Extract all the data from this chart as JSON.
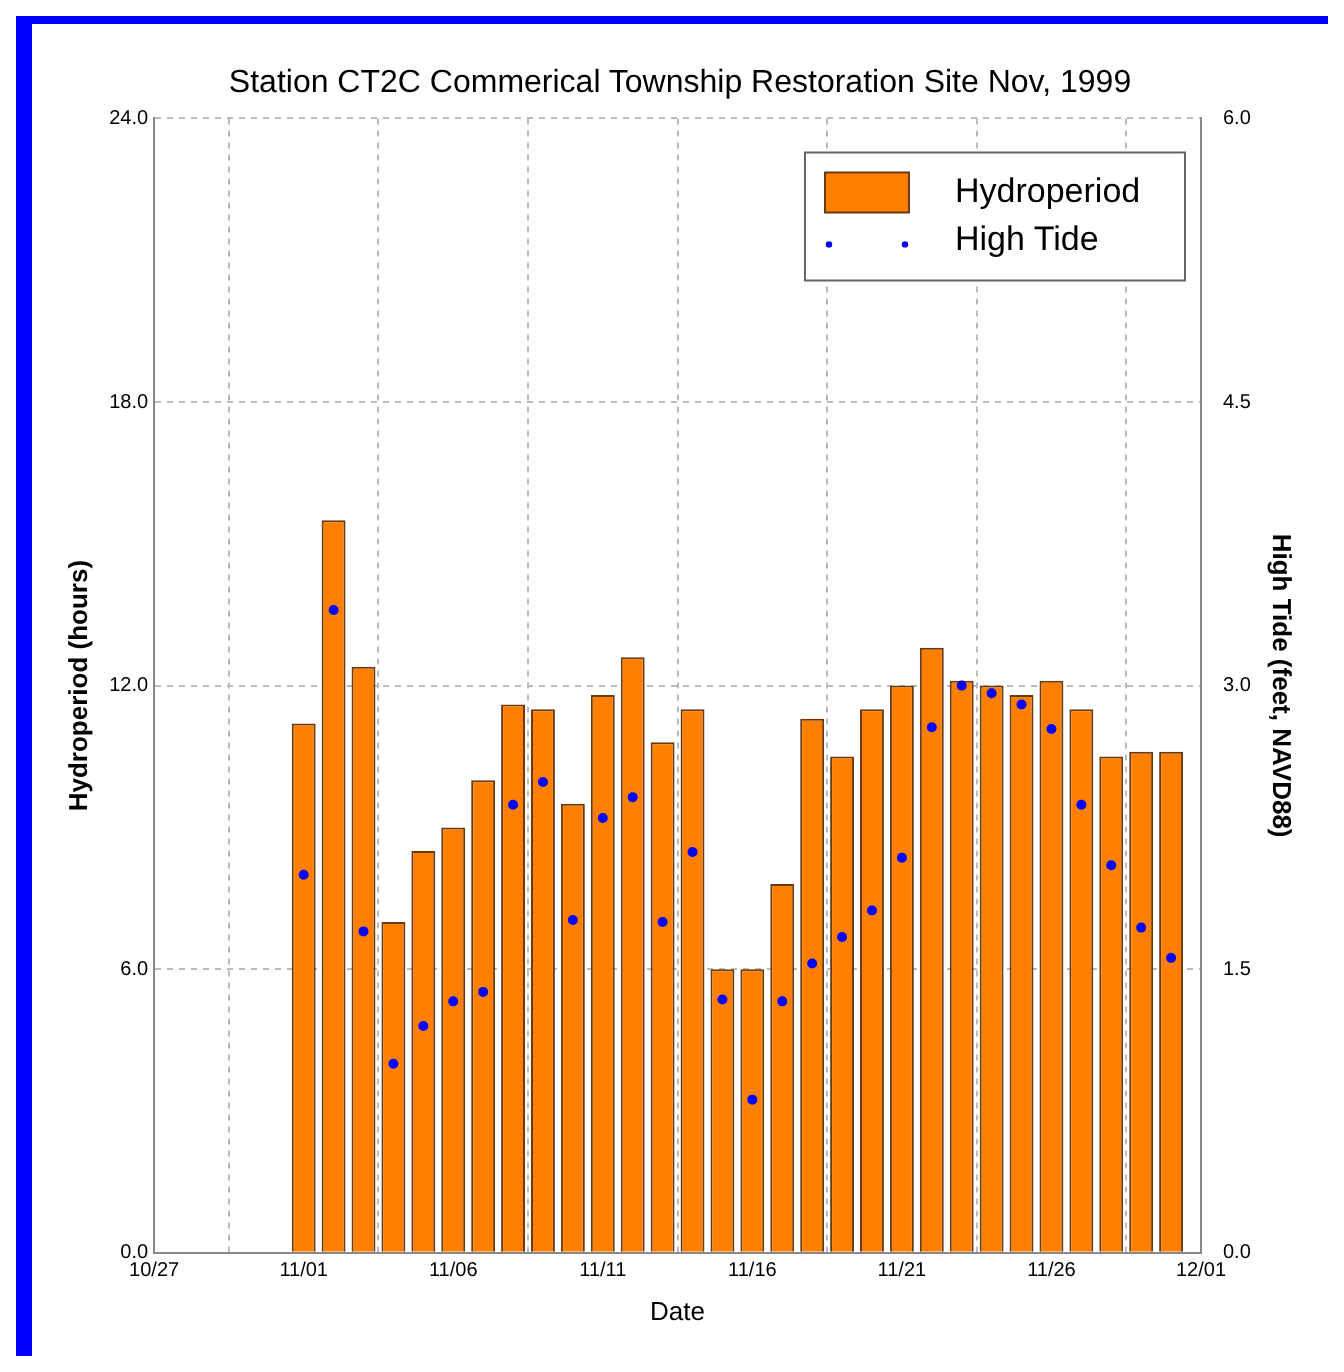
{
  "chart_data": {
    "type": "bar",
    "title": "Station CT2C Commerical Township Restoration Site Nov, 1999",
    "xlabel": "Date",
    "ylabel": "Hydroperiod (hours)",
    "y2label": "High Tide (feet, NAVD88)",
    "x": [
      "1999-11-01",
      "1999-11-02",
      "1999-11-03",
      "1999-11-04",
      "1999-11-05",
      "1999-11-06",
      "1999-11-07",
      "1999-11-08",
      "1999-11-09",
      "1999-11-10",
      "1999-11-11",
      "1999-11-12",
      "1999-11-13",
      "1999-11-14",
      "1999-11-15",
      "1999-11-16",
      "1999-11-17",
      "1999-11-18",
      "1999-11-19",
      "1999-11-20",
      "1999-11-21",
      "1999-11-22",
      "1999-11-23",
      "1999-11-24",
      "1999-11-25",
      "1999-11-26",
      "1999-11-27",
      "1999-11-28",
      "1999-11-29",
      "1999-11-30"
    ],
    "series": [
      {
        "name": "Hydroperiod",
        "color": "#ff7f00",
        "values": [
          11.2,
          15.5,
          12.4,
          7.0,
          8.5,
          9.0,
          10.0,
          11.6,
          11.5,
          9.5,
          11.8,
          12.6,
          10.8,
          11.5,
          6.0,
          6.0,
          7.8,
          11.3,
          10.5,
          11.5,
          12.0,
          12.8,
          12.1,
          12.0,
          11.8,
          12.1,
          11.5,
          10.5,
          10.6,
          10.6
        ]
      },
      {
        "name": "High Tide",
        "type": "scatter",
        "axis": "y2",
        "color": "#0000ff",
        "values": [
          2.0,
          3.4,
          1.7,
          1.0,
          1.2,
          1.33,
          1.38,
          2.37,
          2.49,
          1.76,
          2.3,
          2.41,
          1.75,
          2.12,
          1.34,
          0.81,
          1.33,
          1.53,
          1.67,
          1.81,
          2.09,
          2.78,
          3.0,
          2.96,
          2.9,
          2.77,
          2.37,
          2.05,
          1.72,
          1.56
        ]
      }
    ],
    "xlim": [
      "1999-10-27",
      "1999-12-01"
    ],
    "xticks": [
      {
        "value": "1999-10-27",
        "label": "10/27"
      },
      {
        "value": "1999-11-01",
        "label": "11/01"
      },
      {
        "value": "1999-11-06",
        "label": "11/06"
      },
      {
        "value": "1999-11-11",
        "label": "11/11"
      },
      {
        "value": "1999-11-16",
        "label": "11/16"
      },
      {
        "value": "1999-11-21",
        "label": "11/21"
      },
      {
        "value": "1999-11-26",
        "label": "11/26"
      },
      {
        "value": "1999-12-01",
        "label": "12/01"
      }
    ],
    "ylim": [
      0,
      24
    ],
    "yticks": [
      {
        "value": 0,
        "label": "0.0"
      },
      {
        "value": 6,
        "label": "6.0"
      },
      {
        "value": 12,
        "label": "12.0"
      },
      {
        "value": 18,
        "label": "18.0"
      },
      {
        "value": 24,
        "label": "24.0"
      }
    ],
    "y2lim": [
      0,
      6
    ],
    "y2ticks": [
      {
        "value": 0,
        "label": "0.0"
      },
      1.5,
      {
        "value": 3,
        "label": "3.0"
      },
      4.5,
      {
        "value": 6,
        "label": "6.0"
      }
    ],
    "grid": true,
    "legend": "top right",
    "marker": "circle"
  }
}
